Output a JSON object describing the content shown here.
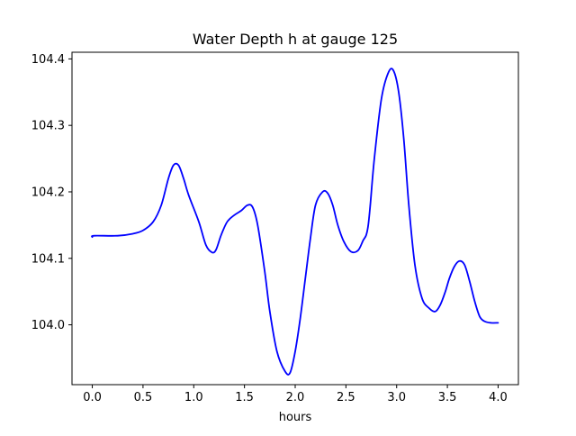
{
  "chart_data": {
    "type": "line",
    "title": "Water Depth h at gauge 125",
    "xlabel": "hours",
    "ylabel": "",
    "xlim": [
      -0.2,
      4.2
    ],
    "ylim": [
      103.91,
      104.41
    ],
    "x_ticks": [
      0.0,
      0.5,
      1.0,
      1.5,
      2.0,
      2.5,
      3.0,
      3.5,
      4.0
    ],
    "x_tick_labels": [
      "0.0",
      "0.5",
      "1.0",
      "1.5",
      "2.0",
      "2.5",
      "3.0",
      "3.5",
      "4.0"
    ],
    "y_ticks": [
      104.0,
      104.1,
      104.2,
      104.3,
      104.4
    ],
    "y_tick_labels": [
      "104.0",
      "104.1",
      "104.2",
      "104.3",
      "104.4"
    ],
    "grid": false,
    "series": [
      {
        "color": "#0000ff",
        "x": [
          0.0,
          0.02,
          0.25,
          0.4,
          0.5,
          0.6,
          0.68,
          0.75,
          0.8,
          0.85,
          0.9,
          0.95,
          1.05,
          1.12,
          1.18,
          1.22,
          1.27,
          1.33,
          1.4,
          1.47,
          1.53,
          1.58,
          1.63,
          1.7,
          1.75,
          1.82,
          1.9,
          1.95,
          2.0,
          2.05,
          2.1,
          2.15,
          2.2,
          2.27,
          2.32,
          2.37,
          2.42,
          2.48,
          2.55,
          2.62,
          2.67,
          2.7,
          2.72,
          2.74,
          2.78,
          2.85,
          2.92,
          2.97,
          3.02,
          3.07,
          3.12,
          3.18,
          3.25,
          3.32,
          3.38,
          3.43,
          3.48,
          3.52,
          3.57,
          3.62,
          3.67,
          3.72,
          3.77,
          3.82,
          3.87,
          3.93,
          4.0
        ],
        "y": [
          104.132,
          104.134,
          104.134,
          104.137,
          104.142,
          104.155,
          104.18,
          104.22,
          104.24,
          104.24,
          104.22,
          104.195,
          104.155,
          104.12,
          104.109,
          104.113,
          104.135,
          104.155,
          104.165,
          104.172,
          104.18,
          104.177,
          104.15,
          104.08,
          104.02,
          103.96,
          103.93,
          103.928,
          103.96,
          104.01,
          104.07,
          104.13,
          104.18,
          104.2,
          104.198,
          104.18,
          104.15,
          104.125,
          104.11,
          104.112,
          104.127,
          104.135,
          104.15,
          104.18,
          104.25,
          104.34,
          104.38,
          104.382,
          104.35,
          104.28,
          104.18,
          104.09,
          104.04,
          104.025,
          104.02,
          104.03,
          104.05,
          104.07,
          104.088,
          104.096,
          104.09,
          104.065,
          104.035,
          104.012,
          104.005,
          104.003,
          104.003
        ]
      }
    ]
  }
}
